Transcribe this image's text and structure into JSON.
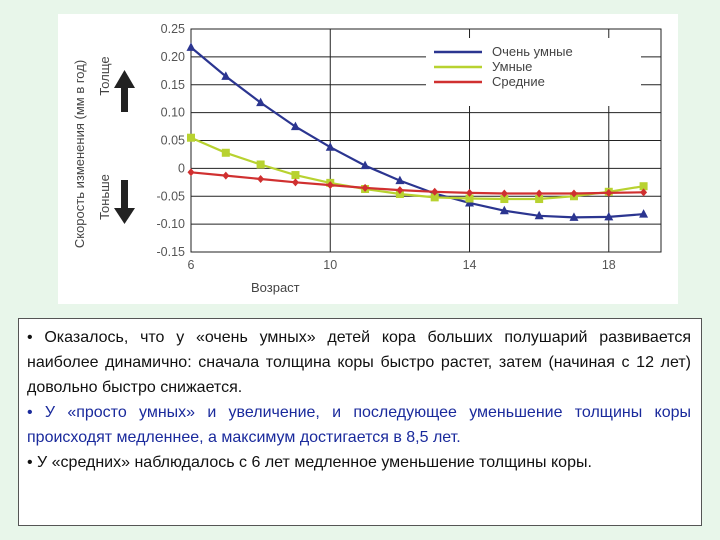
{
  "chart_data": {
    "type": "line",
    "xlabel": "Возраст",
    "ylabel": "Скорость изменения (мм в год)",
    "thicker_label": "Толще",
    "thinner_label": "Тоньше",
    "xlim": [
      6,
      19.5
    ],
    "ylim": [
      -0.15,
      0.25
    ],
    "x_ticks": [
      6,
      10,
      14,
      18
    ],
    "y_ticks": [
      0.25,
      0.2,
      0.15,
      0.1,
      0.05,
      0,
      -0.05,
      -0.1,
      -0.15
    ],
    "y_tick_labels": [
      "0.25",
      "0.20",
      "0.15",
      "0.10",
      "0.05",
      "0",
      "-0.05",
      "-0.10",
      "-0.15"
    ],
    "grid": true,
    "legend_position": "top-right",
    "series": [
      {
        "name": "Очень умные",
        "color": "#2b3590",
        "marker": "triangle",
        "x": [
          6,
          7,
          8,
          9,
          10,
          11,
          12,
          13,
          14,
          15,
          16,
          17,
          18,
          19
        ],
        "values": [
          0.217,
          0.165,
          0.118,
          0.075,
          0.038,
          0.005,
          -0.022,
          -0.045,
          -0.062,
          -0.076,
          -0.085,
          -0.088,
          -0.087,
          -0.082
        ]
      },
      {
        "name": "Умные",
        "color": "#b8d230",
        "marker": "square",
        "x": [
          6,
          7,
          8,
          9,
          10,
          11,
          12,
          13,
          14,
          15,
          16,
          17,
          18,
          19
        ],
        "values": [
          0.055,
          0.028,
          0.007,
          -0.012,
          -0.026,
          -0.037,
          -0.046,
          -0.052,
          -0.054,
          -0.055,
          -0.055,
          -0.05,
          -0.042,
          -0.032
        ]
      },
      {
        "name": "Средние",
        "color": "#d03030",
        "marker": "diamond",
        "x": [
          6,
          7,
          8,
          9,
          10,
          11,
          12,
          13,
          14,
          15,
          16,
          17,
          18,
          19
        ],
        "values": [
          -0.007,
          -0.013,
          -0.019,
          -0.025,
          -0.03,
          -0.035,
          -0.039,
          -0.042,
          -0.044,
          -0.045,
          -0.045,
          -0.045,
          -0.044,
          -0.043
        ]
      }
    ]
  },
  "text": {
    "p1_intro": "• Оказалось, что у «очень умных» детей кора больших полушарий развивается наиболее динамично: сначала толщина коры быстро растет, затем (начиная с 12 лет) довольно быстро снижается.",
    "p2_intro": "• У «просто умных» и увеличение, и последующее уменьшение толщины коры происходят медленнее, а максимум достигается в 8,5 лет.",
    "p3_intro": "• У «средних» наблюдалось с 6 лет медленное уменьшение толщины коры."
  }
}
